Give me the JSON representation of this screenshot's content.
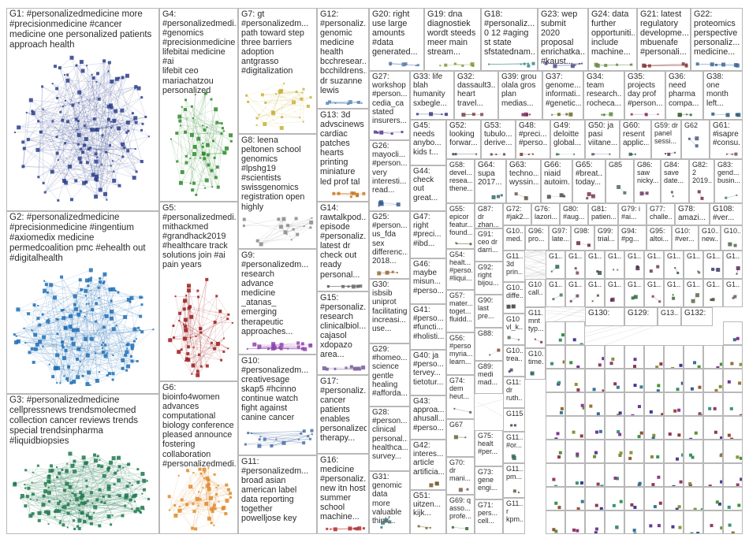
{
  "graph": {
    "background": "#ffffff",
    "border_color": "#b8b8b8",
    "groups": [
      {
        "id": "G1",
        "label": "G1: #personalizedmedicine more\n#precisionmedicine #cancer\nmedicine one personalized patients\napproach health",
        "color": "#2c3e8c",
        "n": 140
      },
      {
        "id": "G2",
        "label": "G2: #personalizedmedicine\n#precisionmedicine #ingentium\n#axiomedix medicine\npermedcoalition pmc #ehealth out\n#digitalhealth",
        "color": "#1f6fb5",
        "n": 160
      },
      {
        "id": "G3",
        "label": "G3: #personalizedmedicine\ncellpressnews trendsmolecmed\ncollection cancer reviews trends\nspecial trendsinpharma\n#liquidbiopsies",
        "color": "#1e7a4e",
        "n": 170
      },
      {
        "id": "G4",
        "label": "G4:\n#personalizedmedi...\n#genomics\n#precisionmedicine\nlifebitai medicine #ai\nlifebit ceo\nmariachatzou\npersonalized",
        "color": "#2e8b2e",
        "n": 60
      },
      {
        "id": "G5",
        "label": "G5:\n#personalizedmedi...\nmithackmed\n#grandhack2019\n#healthcare track\nsolutions join #ai\npain years",
        "color": "#9b1b1b",
        "n": 55
      },
      {
        "id": "G6",
        "label": "G6: bioinfo4women\nadvances\ncomputational\nbiology conference\npleased announce\nfostering\ncollaboration\n#personalizedmedi...",
        "color": "#e08a2a",
        "n": 55
      },
      {
        "id": "G7",
        "label": "G7: gt\n#personalizedm...\npath toward step\nthree barriers\nadoption\nantgrasso\n#digitalization",
        "color": "#c9b23a",
        "n": 25
      },
      {
        "id": "G8",
        "label": "G8: leena\npeltonen school\ngenomics\n#lpshg19\n#scientists\nswissgenomics\nregistration open\nhighly",
        "color": "#8a8a8a",
        "n": 18
      },
      {
        "id": "G9",
        "label": "G9:\n#personalizedm...\nresearch\nadvance\nmedicine\n_atanas_\nemerging\ntherapeutic\napproaches...",
        "color": "#8e44ad",
        "n": 20
      },
      {
        "id": "G10",
        "label": "G10:\n#personalizedm...\ncreativesage\nskap5 #hcinno\ncontinue watch\nfight against\ncanine cancer",
        "color": "#4a6fa5",
        "n": 18
      },
      {
        "id": "G11",
        "label": "G11:\n#personalizedm...\nbroad asian\namerican label\ndata reporting\ntogether\npowelljose key",
        "color": "#3a7a3a",
        "n": 15
      },
      {
        "id": "G12",
        "label": "G12:\n#personaliz...\ngenomic\nmedicine\nhealth\nbcchresear...\nbcchildrens...\ndr suzanne\nlewis",
        "color": "#5b8db8",
        "n": 10
      },
      {
        "id": "G13",
        "label": "G13: 3d\nadvscinews\ncardiac\npatches\nhearts\nprinting\nminiature\nled prof tal",
        "color": "#c97a2a",
        "n": 10
      },
      {
        "id": "G14",
        "label": "G14:\nrawtalkpod...\nepisode\n#personaliz...\nlatest dr\ncheck out\nready\npersonal...",
        "color": "#6a6a6a",
        "n": 9
      },
      {
        "id": "G15",
        "label": "G15:\n#personaliz...\nresearch\nclinicalbiol...\ncajasol\nxdopazo\narea...",
        "color": "#7a5a9a",
        "n": 9
      },
      {
        "id": "G16",
        "label": "G16:\nmedicine\n#personaliz...\nnew itn host\nsummer\nschool\nmachine...",
        "color": "#b03030",
        "n": 8
      },
      {
        "id": "G17",
        "label": "G17:\n#personaliz...\ncancer\npatients\nenables\npersonalized\ntherapy...",
        "color": "#a05aa0",
        "n": 8
      },
      {
        "id": "G18",
        "label": "G18:\n#personaliz...\n0 12 #aging\nst state\nsfstatednam...",
        "color": "#3a8a8a",
        "n": 6
      },
      {
        "id": "G19",
        "label": "G19: dna\ndiagnostiek\nwordt steeds\nmeer main\nstream...",
        "color": "#7a9a3a",
        "n": 6
      },
      {
        "id": "G20",
        "label": "G20: right\nuse large\namounts\n#data\ngenerated...",
        "color": "#5a7ab0",
        "n": 6
      },
      {
        "id": "G21",
        "label": "G21: latest\nregulatory\ndevelopme...\nmbuenafe\n#personali...",
        "color": "#8a3a3a",
        "n": 6
      },
      {
        "id": "G22",
        "label": "G22:\nproteomics\nperspective\npersonaliz...\nmedicine...",
        "color": "#3a6a9a",
        "n": 6
      },
      {
        "id": "G23",
        "label": "G23: wep\nsubmit 2020\nproposal\nenrichatka...\n#kaust...",
        "color": "#4a4a8a",
        "n": 6
      },
      {
        "id": "G24",
        "label": "G24: data\nfurther\nopportuniti...\ninclude\nmachine...",
        "color": "#6a8a4a",
        "n": 6
      },
      {
        "id": "G25",
        "label": "G25:\n#person...\nus_fda\nsex\ndifferenc...\n2018...",
        "color": "#9a6a3a",
        "n": 5
      },
      {
        "id": "G26",
        "label": "G26:\nmayocli...\n#person...\nvery\ninteresti...\nread...",
        "color": "#3a5a9a",
        "n": 5
      },
      {
        "id": "G27",
        "label": "G27:\nworkshop\n#person...\ncedia_ca\nstated\ninsurers...",
        "color": "#5a3a8a",
        "n": 5
      },
      {
        "id": "G28",
        "label": "G28:\n#person...\nclinical\npersonal...\nhealthca...\nsurvey...",
        "color": "#8a5a2a",
        "n": 5
      },
      {
        "id": "G29",
        "label": "G29:\n#homeo...\nscience\ngentle\nhealing\n#afforda...",
        "color": "#2a7a5a",
        "n": 5
      },
      {
        "id": "G30",
        "label": "G30:\nisbsib\nuniprot\nfacilitating\nincreasi...\nuse...",
        "color": "#6a3a6a",
        "n": 5
      },
      {
        "id": "G31",
        "label": "G31: genomic\ndata more\nvaluable\nthink...",
        "color": "#4a7a7a",
        "n": 5
      },
      {
        "id": "G32",
        "label": "G32:\ndassault3...\nheart\ntravel...",
        "color": "#7a4a4a",
        "n": 4
      },
      {
        "id": "G33",
        "label": "G33: life\nblah\nhumanity\nsxbegle...",
        "color": "#3a3a7a",
        "n": 4
      },
      {
        "id": "G34",
        "label": "G34:\nteam\nresearch...\nrocheca...",
        "color": "#5a8a3a",
        "n": 4
      },
      {
        "id": "G35",
        "label": "G35:\nprojects\nday prof\n#person...",
        "color": "#8a3a6a",
        "n": 4
      },
      {
        "id": "G36",
        "label": "G36:\nneed\npharma\ncompa...",
        "color": "#3a6a3a",
        "n": 4
      },
      {
        "id": "G37",
        "label": "G37:\ngenome...\ninformati...\n#genetic...",
        "color": "#6a6a2a",
        "n": 4
      },
      {
        "id": "G38",
        "label": "G38:\none\nmonth\nleft...",
        "color": "#2a5a7a",
        "n": 4
      },
      {
        "id": "G39",
        "label": "G39: grou\nolala gros\nplan\nmedias...",
        "color": "#7a2a5a",
        "n": 4
      },
      {
        "id": "G40",
        "label": "G40: ja\n#perso...\ntervey...\ntietotur...",
        "color": "#4a2a7a",
        "n": 3
      },
      {
        "id": "G41",
        "label": "G41:\n#perso...\n#functi...\n#holisti...",
        "color": "#2a7a2a",
        "n": 3
      },
      {
        "id": "G42",
        "label": "G42:\ninteres...\narticle\nartificia...",
        "color": "#7a5a2a",
        "n": 3
      },
      {
        "id": "G43",
        "label": "G43:\napproa...\nahusall...\n#perso...",
        "color": "#5a2a2a",
        "n": 3
      },
      {
        "id": "G44",
        "label": "G44:\ncheck\nout\ngreat...",
        "color": "#2a4a6a",
        "n": 3
      },
      {
        "id": "G45",
        "label": "G45:\nneeds\nanybo...\nkids t...",
        "color": "#6a2a4a",
        "n": 3
      },
      {
        "id": "G46",
        "label": "G46:\nmaybe\nmisun...\n#perso...",
        "color": "#4a6a2a",
        "n": 3
      },
      {
        "id": "G47",
        "label": "G47:\nright\n#preci...\n#ibd...",
        "color": "#2a2a6a",
        "n": 3
      },
      {
        "id": "G48",
        "label": "G48:\n#preci...\n#perso...",
        "color": "#7a3a2a",
        "n": 3
      },
      {
        "id": "G49",
        "label": "G49:\ndeloitte\nglobal...",
        "color": "#3a7a4a",
        "n": 3
      },
      {
        "id": "G50",
        "label": "G50: ja\npasi\nviitane...",
        "color": "#5a4a7a",
        "n": 3
      },
      {
        "id": "G51",
        "label": "G51:\nuitzen...\nkijk...",
        "color": "#7a6a3a",
        "n": 3
      },
      {
        "id": "G52",
        "label": "G52:\nlooking\nforwar...",
        "color": "#3a4a5a",
        "n": 3
      },
      {
        "id": "G53",
        "label": "G53:\ntubulo...\nderive...",
        "color": "#6a3a3a",
        "n": 3
      },
      {
        "id": "G54",
        "label": "G54:\nhealt...\n#perso...\n#liqui...",
        "color": "#2a6a5a",
        "n": 3
      },
      {
        "id": "G55",
        "label": "G55:\nepicor\nfeatur...\nfound...",
        "color": "#5a5a2a",
        "n": 3
      },
      {
        "id": "G56",
        "label": "G56:\n#perso\nmyria...\nlearn...",
        "color": "#4a3a6a",
        "n": 3
      },
      {
        "id": "G57",
        "label": "G57:\nmater...\ntoget...\nfluidd...",
        "color": "#6a4a3a",
        "n": 3
      },
      {
        "id": "G58",
        "label": "G58:\ndevel...\nresea...\nthene...",
        "color": "#3a5a3a",
        "n": 3
      },
      {
        "id": "G59",
        "label": "G59: dr\npanel\nsessi...",
        "color": "#5a3a5a",
        "n": 3
      },
      {
        "id": "G60",
        "label": "G60:\nresent\napplic...",
        "color": "#2a5a4a",
        "n": 3
      },
      {
        "id": "G61",
        "label": "G61:\n#isapre\n#consu...",
        "color": "#7a4a6a",
        "n": 3
      },
      {
        "id": "G62",
        "label": "G62",
        "color": "#4a5a7a",
        "n": 3
      },
      {
        "id": "G63",
        "label": "G63:\ntechno...\nwyssin...",
        "color": "#6a5a4a",
        "n": 3
      },
      {
        "id": "G64",
        "label": "G64:\nsupa\n2017...",
        "color": "#3a6a6a",
        "n": 3
      },
      {
        "id": "G65",
        "label": "G65:\n#breat...\ntoday...",
        "color": "#7a3a4a",
        "n": 3
      },
      {
        "id": "G66",
        "label": "G66:\nniaid\nautoim...",
        "color": "#4a4a4a",
        "n": 3
      },
      {
        "id": "G67",
        "label": "G67",
        "color": "#5a6a3a",
        "n": 2
      },
      {
        "id": "G68",
        "label": "G68:\ninspi\ntalk...",
        "color": "#6a2a6a",
        "n": 2
      },
      {
        "id": "G69",
        "label": "G69: q\nasso...\nprofe...",
        "color": "#2a6a2a",
        "n": 2
      },
      {
        "id": "G70",
        "label": "G70:\ndr\nmani...",
        "color": "#7a5a4a",
        "n": 2
      },
      {
        "id": "G71",
        "label": "G71:\npers...\ncell...",
        "color": "#3a3a5a",
        "n": 2
      },
      {
        "id": "G72",
        "label": "G72:\n#jak2...",
        "color": "#5a2a4a",
        "n": 2
      },
      {
        "id": "G73",
        "label": "G73:\ngene\nengi...",
        "color": "#4a7a3a",
        "n": 2
      },
      {
        "id": "G74",
        "label": "G74:\ndem\nheut...",
        "color": "#6a4a5a",
        "n": 2
      },
      {
        "id": "G75",
        "label": "G75:\nhealt\n#per...",
        "color": "#2a4a4a",
        "n": 2
      },
      {
        "id": "G76",
        "label": "G76:\nlazori...",
        "color": "#7a6a5a",
        "n": 2
      },
      {
        "id": "G77",
        "label": "G77:\nchalle...",
        "color": "#3a5a6a",
        "n": 2
      },
      {
        "id": "G78",
        "label": "G78:\namazi...",
        "color": "#5a3a3a",
        "n": 2
      },
      {
        "id": "G79",
        "label": "G79: i\n#ai...",
        "color": "#4a2a5a",
        "n": 2
      },
      {
        "id": "G80",
        "label": "G80:\n#aug...",
        "color": "#6a6a4a",
        "n": 2
      },
      {
        "id": "G81",
        "label": "G81:\npatien...",
        "color": "#2a3a6a",
        "n": 2
      },
      {
        "id": "G82",
        "label": "G82:\n2\n2019...",
        "color": "#7a2a3a",
        "n": 2
      },
      {
        "id": "G83",
        "label": "G83:\ngend...\nbusin...",
        "color": "#3a7a6a",
        "n": 2
      },
      {
        "id": "G84",
        "label": "G84:\nsave\ndate...",
        "color": "#5a5a5a",
        "n": 2
      },
      {
        "id": "G85",
        "label": "G85",
        "color": "#4a6a6a",
        "n": 2
      },
      {
        "id": "G86",
        "label": "G86:\nsaw\nnicky...",
        "color": "#6a3a5a",
        "n": 2
      },
      {
        "id": "G87",
        "label": "G87:\ndr\nzhan...",
        "color": "#2a5a6a",
        "n": 2
      },
      {
        "id": "G88",
        "label": "G88:",
        "color": "#7a4a3a",
        "n": 2
      },
      {
        "id": "G89",
        "label": "G89:\nmedi\nmad...",
        "color": "#3a4a7a",
        "n": 2
      },
      {
        "id": "G90",
        "label": "G90:\nlast\npre...",
        "color": "#5a7a4a",
        "n": 2
      },
      {
        "id": "G91",
        "label": "G91:\nceo dr\ndarri...",
        "color": "#4a3a4a",
        "n": 2
      },
      {
        "id": "G92",
        "label": "G92:\nright\nbijou...",
        "color": "#6a5a6a",
        "n": 2
      },
      {
        "id": "G93",
        "label": "G93:",
        "color": "#2a6a6a",
        "n": 2
      },
      {
        "id": "G94",
        "label": "G94:\n#pg...",
        "color": "#7a3a6a",
        "n": 2
      },
      {
        "id": "G95",
        "label": "G95:\naltoi...",
        "color": "#3a6a4a",
        "n": 2
      },
      {
        "id": "G96",
        "label": "G96:\npro...",
        "color": "#5a4a3a",
        "n": 2
      },
      {
        "id": "G97",
        "label": "G97:\nlate...",
        "color": "#4a5a5a",
        "n": 2
      },
      {
        "id": "G98",
        "label": "G98:",
        "color": "#6a2a3a",
        "n": 2
      },
      {
        "id": "G99",
        "label": "G99:\ntrial...",
        "color": "#2a4a5a",
        "n": 2
      },
      {
        "id": "G100",
        "label": "G10...\nmed...",
        "color": "#7a5a5a",
        "n": 2
      },
      {
        "id": "G101",
        "label": "G10...\ndiffe...",
        "color": "#3a3a3a",
        "n": 2
      },
      {
        "id": "G102",
        "label": "G10\nvl_k...",
        "color": "#5a6a5a",
        "n": 2
      },
      {
        "id": "G103",
        "label": "G10...\ntrea...",
        "color": "#4a4a6a",
        "n": 2
      },
      {
        "id": "G104",
        "label": "G10\ncall...",
        "color": "#6a4a4a",
        "n": 2
      },
      {
        "id": "G105",
        "label": "G10...\ntime...",
        "color": "#2a5a5a",
        "n": 2
      },
      {
        "id": "G106",
        "label": "G10:\n#ver...",
        "color": "#7a6a6a",
        "n": 2
      },
      {
        "id": "G107",
        "label": "G10...\nnew...",
        "color": "#3a5a5a",
        "n": 2
      },
      {
        "id": "G108",
        "label": "G108:\n#ver...",
        "color": "#5a3a6a",
        "n": 2
      },
      {
        "id": "G109",
        "label": "G10...",
        "color": "#4a6a4a",
        "n": 2
      },
      {
        "id": "G110",
        "label": "G11...\n3d\nprin...",
        "color": "#6a5a3a",
        "n": 2
      },
      {
        "id": "G111",
        "label": "G11:\ndr\nruth...",
        "color": "#2a3a5a",
        "n": 2
      },
      {
        "id": "G112",
        "label": "G11...\nmnt\ntyp...",
        "color": "#7a2a4a",
        "n": 2
      },
      {
        "id": "G113",
        "label": "G11...\n#or...",
        "color": "#3a6a5a",
        "n": 2
      },
      {
        "id": "G114",
        "label": "G11...\npm...",
        "color": "#5a5a4a",
        "n": 2
      },
      {
        "id": "G115",
        "label": "G115...",
        "color": "#4a3a5a",
        "n": 2
      },
      {
        "id": "G116",
        "label": "G11...\nr\nkpm...",
        "color": "#6a6a5a",
        "n": 2
      },
      {
        "id": "G117",
        "label": "G1...",
        "color": "#2a6a4a",
        "n": 2
      },
      {
        "id": "G118",
        "label": "G1...",
        "color": "#7a4a5a",
        "n": 2
      },
      {
        "id": "G119",
        "label": "G1...",
        "color": "#3a4a4a",
        "n": 2
      },
      {
        "id": "G120",
        "label": "G1...",
        "color": "#5a7a5a",
        "n": 2
      },
      {
        "id": "G121",
        "label": "G1...",
        "color": "#4a2a4a",
        "n": 2
      },
      {
        "id": "G122",
        "label": "G1...",
        "color": "#6a3a4a",
        "n": 2
      },
      {
        "id": "G123",
        "label": "G1...",
        "color": "#2a5a3a",
        "n": 2
      },
      {
        "id": "G124",
        "label": "G1...",
        "color": "#7a5a3a",
        "n": 2
      },
      {
        "id": "G125",
        "label": "G1...",
        "color": "#3a3a6a",
        "n": 2
      },
      {
        "id": "G126",
        "label": "G1...",
        "color": "#5a2a5a",
        "n": 2
      },
      {
        "id": "G127",
        "label": "G1...",
        "color": "#4a7a5a",
        "n": 2
      },
      {
        "id": "G128",
        "label": "G1...",
        "color": "#6a4a6a",
        "n": 2
      },
      {
        "id": "G129",
        "label": "G129:",
        "color": "#2a4a3a",
        "n": 2
      },
      {
        "id": "G130",
        "label": "G130:",
        "color": "#7a6a4a",
        "n": 2
      },
      {
        "id": "G131",
        "label": "G13...",
        "color": "#3a5a4a",
        "n": 2
      },
      {
        "id": "G132",
        "label": "G132:",
        "color": "#5a4a5a",
        "n": 2
      },
      {
        "id": "G133",
        "label": "G1...",
        "color": "#4a5a3a",
        "n": 2
      },
      {
        "id": "G134",
        "label": "G1...",
        "color": "#6a2a5a",
        "n": 2
      },
      {
        "id": "G135",
        "label": "G1...",
        "color": "#2a6a3a",
        "n": 2
      },
      {
        "id": "G136",
        "label": "G1...",
        "color": "#7a3a5a",
        "n": 2
      },
      {
        "id": "G137",
        "label": "G1...",
        "color": "#3a6a3a",
        "n": 2
      },
      {
        "id": "G138",
        "label": "G1...",
        "color": "#5a6a4a",
        "n": 2
      },
      {
        "id": "G139",
        "label": "G1...",
        "color": "#4a4a3a",
        "n": 2
      },
      {
        "id": "G140",
        "label": "G1...",
        "color": "#6a5a5a",
        "n": 2
      }
    ]
  }
}
